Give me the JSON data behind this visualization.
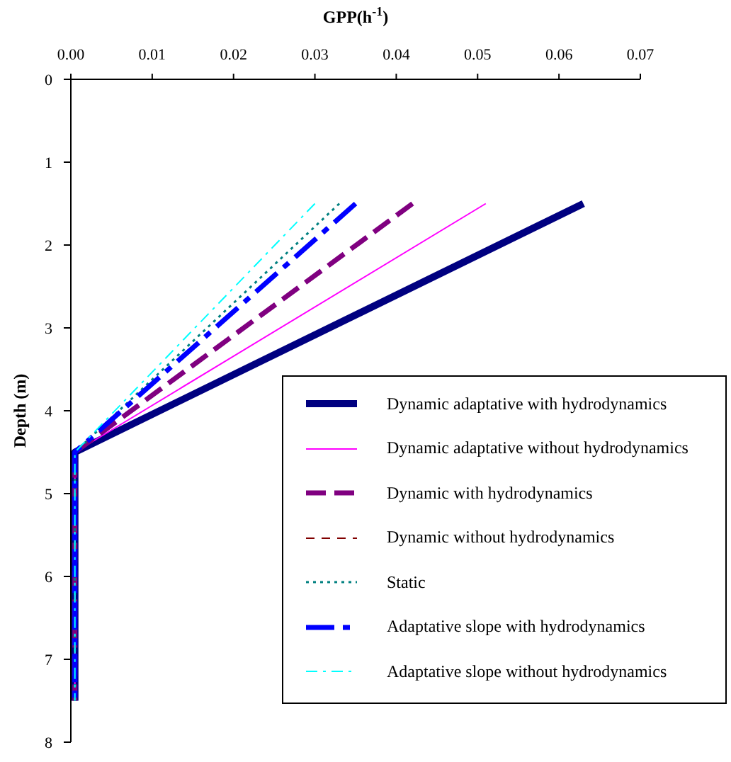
{
  "chart_data": {
    "type": "line",
    "xlabel": "GPP(h$^{-1}$)",
    "ylabel": "Depth (m)",
    "xlim": [
      0,
      0.07
    ],
    "xticks": [
      {
        "value": 0,
        "label": "0.00"
      },
      0.01,
      0.02,
      0.03,
      0.04,
      0.05,
      0.06,
      0.07
    ],
    "ylim": [
      8,
      0
    ],
    "yticks": [
      0,
      1,
      2,
      3,
      4,
      5,
      6,
      7,
      8
    ],
    "legend": "bottom right",
    "marker": "none",
    "series": [
      {
        "name": "Dynamic adaptative with hydrodynamics",
        "color": "#000080",
        "line_style": "solid",
        "x": [
          0.063,
          0.0005,
          0.0005
        ],
        "values": [
          1.5,
          4.5,
          7.5
        ]
      },
      {
        "name": "Dynamic adaptative without hydrodynamics",
        "color": "#ff00ff",
        "line_style": "solid",
        "x": [
          0.051,
          0.0005,
          0.0005
        ],
        "values": [
          1.5,
          4.5,
          7.5
        ]
      },
      {
        "name": "Dynamic with hydrodynamics",
        "color": "#800080",
        "line_style": "dashed",
        "x": [
          0.042,
          0.0005,
          0.0005
        ],
        "values": [
          1.5,
          4.5,
          7.5
        ]
      },
      {
        "name": "Dynamic without hydrodynamics",
        "color": "#800000",
        "line_style": "dashed",
        "values": [
          null,
          null,
          null
        ]
      },
      {
        "name": "Static",
        "color": "#008080",
        "line_style": "dotted",
        "x": [
          0.033,
          0.0005,
          0.0005
        ],
        "values": [
          1.5,
          4.5,
          7.5
        ]
      },
      {
        "name": "Adaptative slope with hydrodynamics",
        "color": "#0000ff",
        "line_style": "dashed",
        "x": [
          0.035,
          0.0005,
          0.0005
        ],
        "values": [
          1.5,
          4.5,
          7.5
        ]
      },
      {
        "name": "Adaptative slope without hydrodynamics",
        "color": "#00ffff",
        "line_style": "dashed",
        "x": [
          0.03,
          0.0005,
          0.0005
        ],
        "values": [
          1.5,
          4.5,
          7.5
        ]
      }
    ]
  }
}
